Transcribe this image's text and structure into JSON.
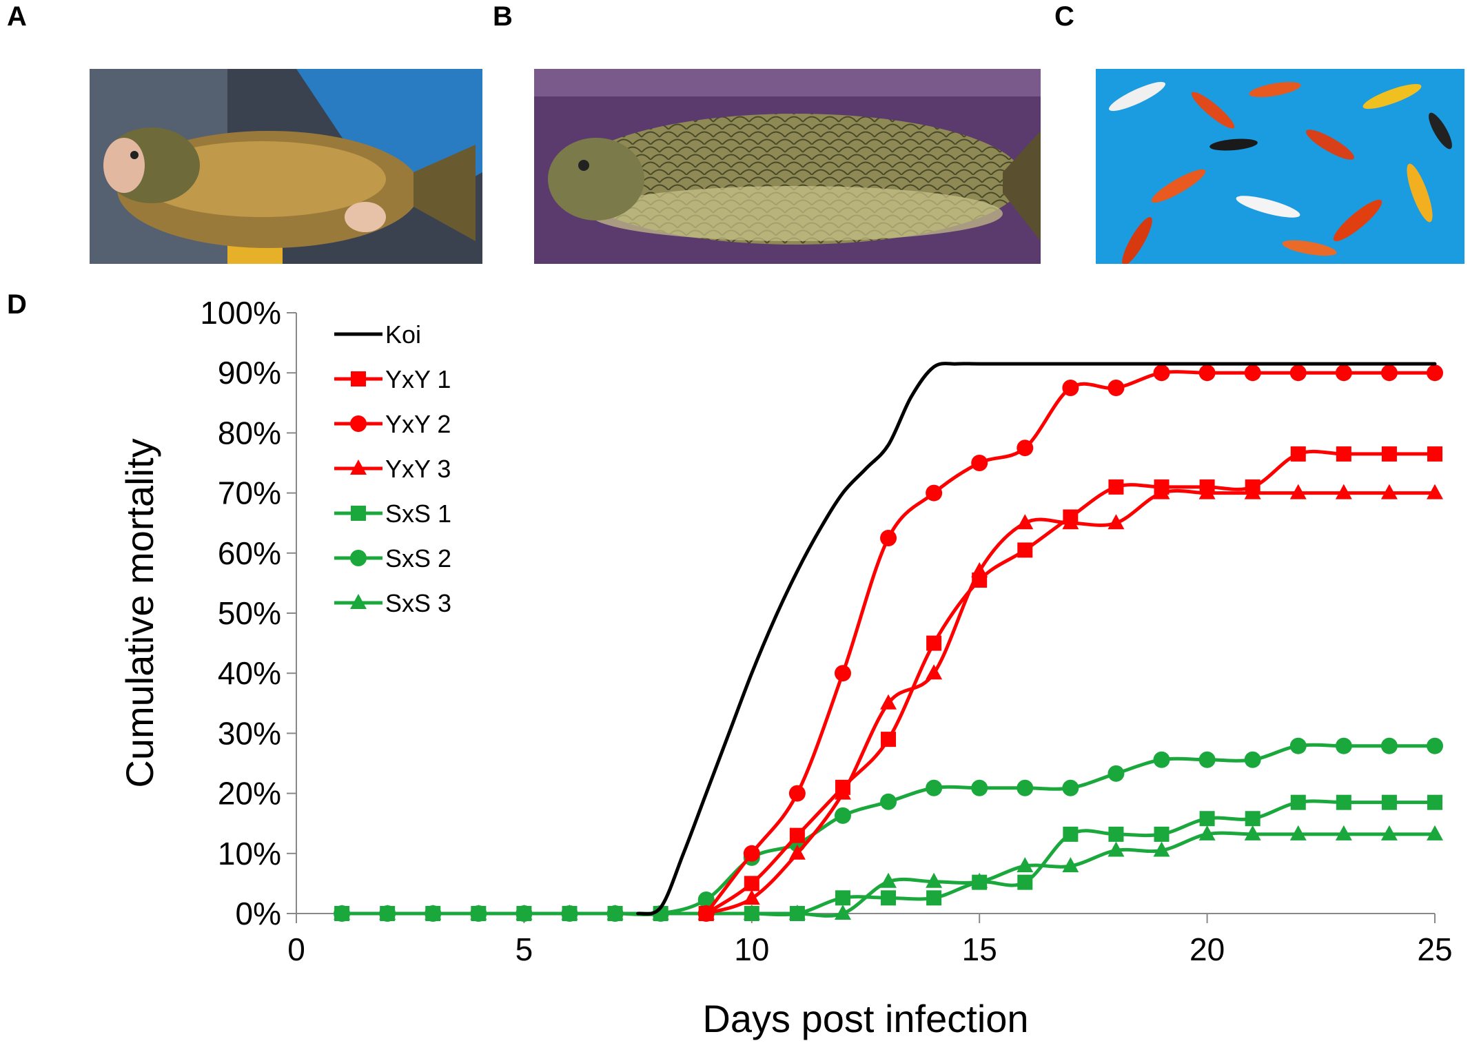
{
  "panels": {
    "a": {
      "label": "A",
      "caption": "Mirror carp held in hands over blue tank"
    },
    "b": {
      "label": "B",
      "caption": "Scaled common carp lying on purple towel"
    },
    "c": {
      "label": "C",
      "caption": "Koi swimming in blue pool"
    },
    "d": {
      "label": "D"
    }
  },
  "colors": {
    "koi": "#000000",
    "yxy": "#ff0000",
    "sxs": "#1aa83c"
  },
  "chart_data": {
    "type": "line",
    "xlabel": "Days post infection",
    "ylabel": "Cumulative mortality",
    "xlim": [
      0,
      25
    ],
    "ylim": [
      0,
      100
    ],
    "x_ticks": [
      0,
      5,
      10,
      15,
      20,
      25
    ],
    "y_ticks": [
      0,
      10,
      20,
      30,
      40,
      50,
      60,
      70,
      80,
      90,
      100
    ],
    "y_tick_labels": [
      "0%",
      "10%",
      "20%",
      "30%",
      "40%",
      "50%",
      "60%",
      "70%",
      "80%",
      "90%",
      "100%"
    ],
    "legend_position": "top-left",
    "series": [
      {
        "name": "Koi",
        "color": "#000000",
        "marker": "none",
        "smooth": true,
        "x": [
          7.5,
          8,
          8.5,
          9,
          9.5,
          10,
          10.5,
          11,
          11.5,
          12,
          12.5,
          13,
          13.5,
          14,
          14.5,
          15,
          16,
          20,
          25
        ],
        "y": [
          0,
          1,
          10,
          20,
          30,
          40,
          49,
          57,
          64,
          70,
          74,
          78,
          86,
          91,
          91.5,
          91.5,
          91.5,
          91.5,
          91.5
        ]
      },
      {
        "name": "YxY 1",
        "color": "#ff0000",
        "marker": "square",
        "x": [
          9,
          10,
          11,
          12,
          13,
          14,
          15,
          16,
          17,
          18,
          19,
          20,
          21,
          22,
          23,
          24,
          25
        ],
        "y": [
          0,
          5,
          13,
          21,
          29,
          45,
          55.5,
          60.5,
          66,
          71,
          71,
          71,
          71,
          76.5,
          76.5,
          76.5,
          76.5
        ]
      },
      {
        "name": "YxY 2",
        "color": "#ff0000",
        "marker": "circle",
        "x": [
          9,
          10,
          11,
          12,
          13,
          14,
          15,
          16,
          17,
          18,
          19,
          20,
          21,
          22,
          23,
          24,
          25
        ],
        "y": [
          0,
          10,
          20,
          40,
          62.5,
          70,
          75,
          77.5,
          87.5,
          87.5,
          90,
          90,
          90,
          90,
          90,
          90,
          90
        ]
      },
      {
        "name": "YxY 3",
        "color": "#ff0000",
        "marker": "triangle",
        "x": [
          9,
          10,
          11,
          12,
          13,
          14,
          15,
          16,
          17,
          18,
          19,
          20,
          21,
          22,
          23,
          24,
          25
        ],
        "y": [
          0,
          2.5,
          10,
          20,
          35,
          40,
          57,
          65,
          65,
          65,
          70,
          70,
          70,
          70,
          70,
          70,
          70
        ]
      },
      {
        "name": "SxS 1",
        "color": "#1aa83c",
        "marker": "square",
        "x": [
          1,
          2,
          3,
          4,
          5,
          6,
          7,
          8,
          9,
          10,
          11,
          12,
          13,
          14,
          15,
          16,
          17,
          18,
          19,
          20,
          21,
          22,
          23,
          24,
          25
        ],
        "y": [
          0,
          0,
          0,
          0,
          0,
          0,
          0,
          0,
          0,
          0,
          0,
          2.6,
          2.6,
          2.6,
          5.2,
          5.2,
          13.2,
          13.2,
          13.2,
          15.8,
          15.8,
          18.5,
          18.5,
          18.5,
          18.5
        ]
      },
      {
        "name": "SxS 2",
        "color": "#1aa83c",
        "marker": "circle",
        "x": [
          1,
          2,
          3,
          4,
          5,
          6,
          7,
          8,
          9,
          10,
          11,
          12,
          13,
          14,
          15,
          16,
          17,
          18,
          19,
          20,
          21,
          22,
          23,
          24,
          25
        ],
        "y": [
          0,
          0,
          0,
          0,
          0,
          0,
          0,
          0,
          2.3,
          9.3,
          11.6,
          16.3,
          18.6,
          20.9,
          20.9,
          20.9,
          20.9,
          23.3,
          25.6,
          25.6,
          25.6,
          27.9,
          27.9,
          27.9,
          27.9
        ]
      },
      {
        "name": "SxS 3",
        "color": "#1aa83c",
        "marker": "triangle",
        "x": [
          1,
          2,
          3,
          4,
          5,
          6,
          7,
          8,
          9,
          10,
          11,
          12,
          13,
          14,
          15,
          16,
          17,
          18,
          19,
          20,
          21,
          22,
          23,
          24,
          25
        ],
        "y": [
          0,
          0,
          0,
          0,
          0,
          0,
          0,
          0,
          0,
          0,
          0,
          0,
          5.3,
          5.3,
          5.3,
          7.9,
          7.9,
          10.5,
          10.5,
          13.2,
          13.2,
          13.2,
          13.2,
          13.2,
          13.2
        ]
      }
    ]
  }
}
